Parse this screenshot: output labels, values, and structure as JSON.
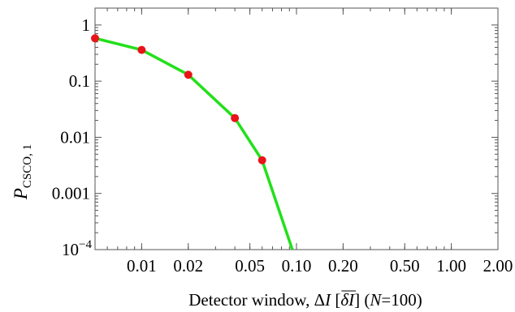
{
  "chart_data": {
    "type": "line",
    "title": "",
    "xlabel": {
      "prefix": "Detector window, Δ",
      "var": "I",
      "bracket_open": " [",
      "overline_text": "δI",
      "bracket_close": "] (",
      "n_var": "N",
      "n_value": "=100)"
    },
    "ylabel": {
      "main": "P",
      "subscript": "CSCO, 1"
    },
    "xscale": "log",
    "yscale": "log",
    "xlim": [
      0.005,
      2.0
    ],
    "ylim": [
      0.0001,
      2.0
    ],
    "x_ticks": [
      {
        "value": 0.01,
        "label": "0.01"
      },
      {
        "value": 0.02,
        "label": "0.02"
      },
      {
        "value": 0.05,
        "label": "0.05"
      },
      {
        "value": 0.1,
        "label": "0.10"
      },
      {
        "value": 0.2,
        "label": "0.20"
      },
      {
        "value": 0.5,
        "label": "0.50"
      },
      {
        "value": 1.0,
        "label": "1.00"
      },
      {
        "value": 2.0,
        "label": "2.00"
      }
    ],
    "y_ticks": [
      {
        "value": 1,
        "label": "1"
      },
      {
        "value": 0.1,
        "label": "0.1"
      },
      {
        "value": 0.01,
        "label": "0.01"
      },
      {
        "value": 0.001,
        "label": "0.001"
      },
      {
        "value": 0.0001,
        "label": "10",
        "exponent": "−4"
      }
    ],
    "grid": false,
    "series": [
      {
        "kind": "curve",
        "color": "#22e01a",
        "points": [
          {
            "x": 0.005,
            "y": 0.58
          },
          {
            "x": 0.01,
            "y": 0.36
          },
          {
            "x": 0.02,
            "y": 0.13
          },
          {
            "x": 0.04,
            "y": 0.022
          },
          {
            "x": 0.06,
            "y": 0.0039
          },
          {
            "x": 0.094,
            "y": 0.0001
          }
        ]
      },
      {
        "kind": "points",
        "color": "#e8141a",
        "points": [
          {
            "x": 0.005,
            "y": 0.58
          },
          {
            "x": 0.01,
            "y": 0.36
          },
          {
            "x": 0.02,
            "y": 0.13
          },
          {
            "x": 0.04,
            "y": 0.022
          },
          {
            "x": 0.06,
            "y": 0.0039
          }
        ]
      }
    ]
  }
}
